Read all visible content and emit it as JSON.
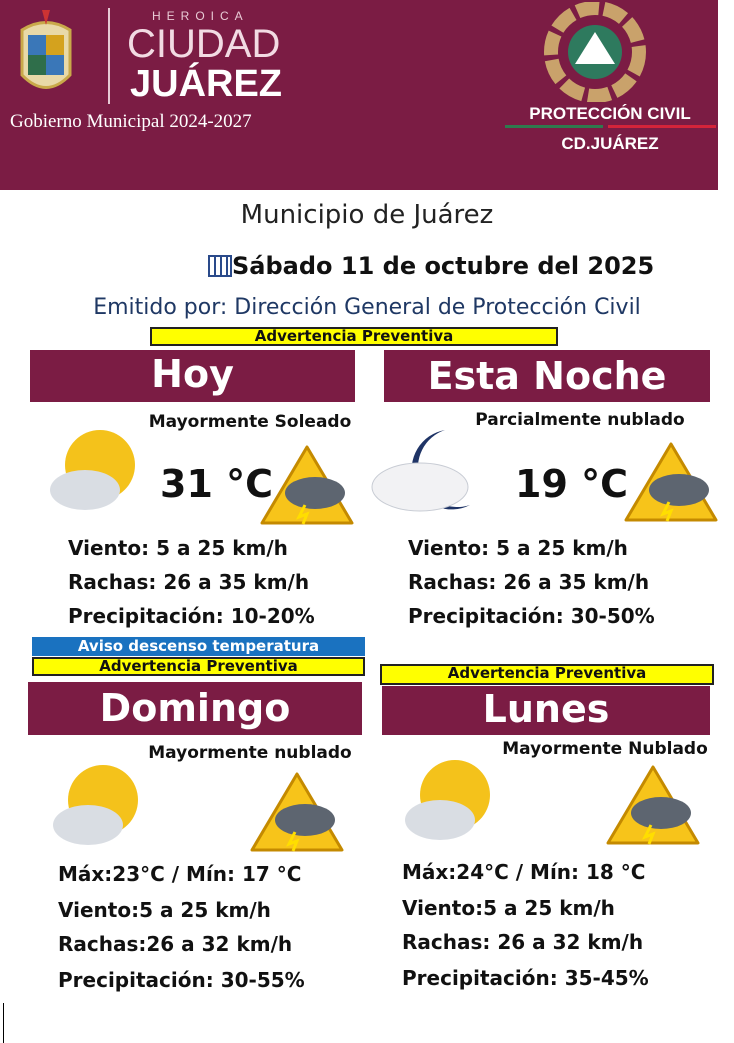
{
  "header": {
    "heroica": "HEROICA",
    "ciudad": "CIUDAD",
    "juarez": "JUÁREZ",
    "gobierno": "Gobierno Municipal 2024-2027",
    "pc": "PROTECCIÓN CIVIL",
    "cd": "CD.JUÁREZ",
    "brand_color": "#7b1c44"
  },
  "municipio": "Municipio de Juárez",
  "fecha": "Sábado 11 de octubre del 2025",
  "emitido": "Emitido por: Dirección General de Protección Civil",
  "panels": [
    {
      "alert": "Advertencia Preventiva",
      "title": "Hoy",
      "condition": "Mayormente Soleado",
      "temp": "31 °C",
      "icon": "sun-cloud-icon",
      "lines": [
        [
          "Viento:",
          "5 a 25 km/h"
        ],
        [
          "Rachas:",
          "26 a 35 km/h"
        ],
        [
          "Precipitación:",
          "10-20%"
        ]
      ]
    },
    {
      "title": "Esta Noche",
      "condition": "Parcialmente nublado",
      "temp": "19 °C",
      "icon": "moon-cloud-icon",
      "lines": [
        [
          "Viento:",
          "5 a 25 km/h"
        ],
        [
          "Rachas:",
          "26 a 35 km/h"
        ],
        [
          "Precipitación:",
          "30-50%"
        ]
      ]
    },
    {
      "notice": "Aviso descenso temperatura",
      "alert": "Advertencia Preventiva",
      "title": "Domingo",
      "condition": "Mayormente nublado",
      "icon": "sun-cloud-icon",
      "lines": [
        [
          "Máx:",
          "23°C / Mín:",
          "17 °C"
        ],
        [
          "Viento:",
          "5 a 25 km/h"
        ],
        [
          "Rachas:",
          "26 a 32 km/h"
        ],
        [
          "Precipitación:",
          "30-55%"
        ]
      ]
    },
    {
      "alert": "Advertencia Preventiva",
      "title": "Lunes",
      "condition": "Mayormente Nublado",
      "icon": "sun-cloud-icon",
      "lines": [
        [
          "Máx:",
          "24°C / Mín:",
          "18 °C"
        ],
        [
          "Viento:",
          "5 a 25 km/h"
        ],
        [
          "Rachas:",
          "26 a 32 km/h"
        ],
        [
          "Precipitación:",
          "35-45%"
        ]
      ]
    }
  ]
}
